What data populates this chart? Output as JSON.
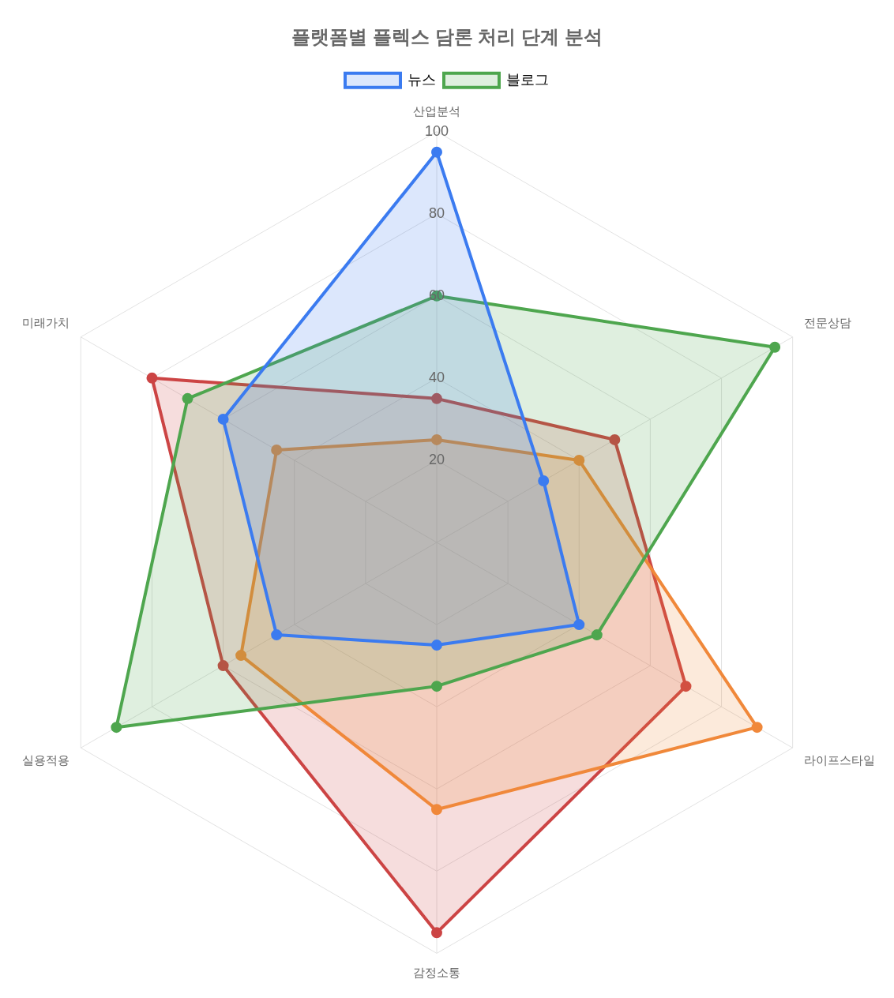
{
  "chart_data": {
    "type": "radar",
    "title": "플랫폼별 플렉스 담론 처리 단계 분석",
    "categories": [
      "산업분석",
      "전문상담",
      "라이프스타일",
      "감정소통",
      "실용적용",
      "미래가치"
    ],
    "series": [
      {
        "name": "뉴스",
        "color": "#3b7bf0",
        "values": [
          95,
          30,
          40,
          25,
          45,
          60
        ]
      },
      {
        "name": "블로그",
        "color": "#4ea64e",
        "values": [
          60,
          95,
          45,
          35,
          90,
          70
        ]
      },
      {
        "color": "#f0883a",
        "values": [
          25,
          40,
          90,
          65,
          55,
          45
        ]
      },
      {
        "color": "#cc4444",
        "values": [
          35,
          50,
          70,
          95,
          60,
          80
        ]
      }
    ],
    "ylim": [
      0,
      100
    ],
    "yticks": [
      20,
      40,
      60,
      80,
      100
    ],
    "grid": true,
    "legend": "top",
    "marker": "circle",
    "line_style": "solid"
  }
}
